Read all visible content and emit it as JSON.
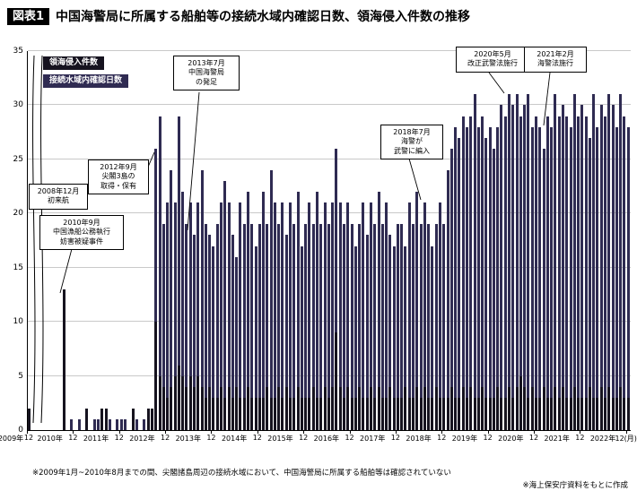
{
  "header": {
    "badge": "図表1",
    "title": "中国海警局に所属する船舶等の接続水域内確認日数、領海侵入件数の推移"
  },
  "legend": {
    "intrusions": "領海侵入件数",
    "contiguous": "接続水域内確認日数"
  },
  "annotations": [
    {
      "lines": [
        "2008年12月",
        "初来航"
      ]
    },
    {
      "lines": [
        "2010年9月",
        "中国漁船公務執行",
        "妨害被疑事件"
      ]
    },
    {
      "lines": [
        "2012年9月",
        "尖閣3島の",
        "取得・保有"
      ]
    },
    {
      "lines": [
        "2013年7月",
        "中国海警局",
        "の発足"
      ]
    },
    {
      "lines": [
        "2018年7月",
        "海警が",
        "武警に編入"
      ]
    },
    {
      "lines": [
        "2020年5月",
        "改正武警法施行"
      ]
    },
    {
      "lines": [
        "2021年2月",
        "海警法施行"
      ]
    }
  ],
  "footnotes": {
    "left": "※2009年1月~2010年8月までの間、尖閣諸島周辺の接続水域において、中国海警局に所属する船舶等は確認されていない",
    "right": "※海上保安庁資料をもとに作成"
  },
  "chart_data": {
    "type": "bar",
    "interval": "monthly",
    "x_start": "2009-12",
    "x_end": "2022-12",
    "ylim": [
      0,
      35
    ],
    "yticks": [
      0,
      5,
      10,
      15,
      20,
      25,
      30,
      35
    ],
    "grid": true,
    "legend_position": "top-left",
    "x_axis": {
      "years": [
        "2009年",
        "2010年",
        "2011年",
        "2012年",
        "2013年",
        "2014年",
        "2015年",
        "2016年",
        "2017年",
        "2018年",
        "2019年",
        "2020年",
        "2021年",
        "2022年"
      ],
      "dec_label": "12",
      "last_dec_label": "12(月)"
    },
    "series": [
      {
        "name": "領海侵入件数",
        "color": "#16131f",
        "values": [
          2,
          0,
          0,
          0,
          0,
          0,
          0,
          0,
          0,
          13,
          0,
          0,
          0,
          0,
          0,
          2,
          0,
          0,
          0,
          2,
          2,
          0,
          0,
          0,
          0,
          0,
          0,
          2,
          0,
          0,
          0,
          2,
          2,
          10,
          5,
          4,
          3,
          4,
          5,
          6,
          5,
          4,
          5,
          4,
          5,
          4,
          3,
          4,
          3,
          3,
          4,
          3,
          4,
          3,
          4,
          3,
          3,
          4,
          3,
          3,
          3,
          3,
          4,
          3,
          3,
          4,
          3,
          4,
          3,
          3,
          4,
          3,
          3,
          3,
          4,
          3,
          3,
          4,
          3,
          4,
          9,
          4,
          3,
          4,
          3,
          3,
          4,
          3,
          3,
          4,
          3,
          4,
          3,
          3,
          4,
          3,
          3,
          3,
          4,
          3,
          3,
          4,
          3,
          4,
          3,
          3,
          4,
          3,
          3,
          3,
          4,
          3,
          3,
          4,
          3,
          4,
          3,
          3,
          4,
          3,
          3,
          3,
          4,
          3,
          3,
          4,
          3,
          4,
          5,
          4,
          3,
          4,
          3,
          3,
          4,
          3,
          3,
          4,
          3,
          4,
          3,
          3,
          4,
          3,
          3,
          3,
          4,
          3,
          3,
          4,
          3,
          4,
          3,
          3,
          4,
          3,
          3
        ]
      },
      {
        "name": "接続水域内確認日数",
        "color": "#2f2b52",
        "values": [
          0,
          0,
          0,
          0,
          0,
          0,
          0,
          0,
          0,
          1,
          0,
          1,
          0,
          1,
          0,
          1,
          0,
          1,
          1,
          0,
          1,
          1,
          0,
          1,
          1,
          1,
          0,
          1,
          1,
          0,
          1,
          1,
          2,
          26,
          29,
          19,
          21,
          24,
          21,
          29,
          22,
          19,
          21,
          18,
          21,
          24,
          19,
          18,
          17,
          19,
          21,
          23,
          21,
          18,
          16,
          21,
          19,
          22,
          19,
          17,
          19,
          22,
          19,
          24,
          21,
          19,
          21,
          18,
          21,
          19,
          22,
          17,
          19,
          21,
          19,
          22,
          19,
          21,
          19,
          21,
          26,
          21,
          19,
          21,
          19,
          17,
          19,
          21,
          18,
          21,
          19,
          22,
          19,
          21,
          18,
          17,
          19,
          19,
          17,
          21,
          19,
          22,
          19,
          21,
          19,
          17,
          19,
          21,
          19,
          24,
          26,
          28,
          27,
          29,
          28,
          29,
          31,
          28,
          29,
          27,
          28,
          26,
          28,
          30,
          29,
          31,
          30,
          31,
          29,
          30,
          31,
          28,
          29,
          28,
          26,
          29,
          28,
          31,
          29,
          30,
          29,
          28,
          31,
          29,
          30,
          29,
          27,
          31,
          28,
          30,
          29,
          31,
          30,
          28,
          31,
          29,
          28
        ]
      }
    ]
  }
}
